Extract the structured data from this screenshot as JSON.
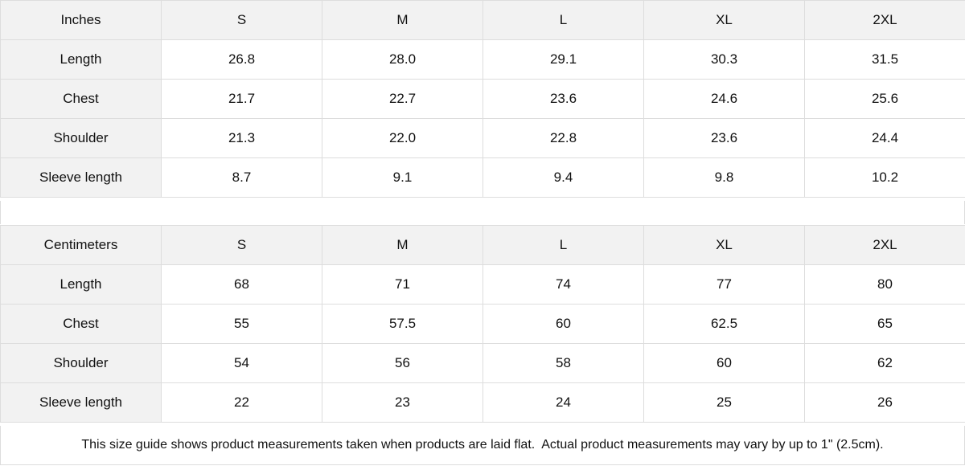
{
  "tables": [
    {
      "unit_label": "Inches",
      "sizes": [
        "S",
        "M",
        "L",
        "XL",
        "2XL"
      ],
      "rows": [
        {
          "label": "Length",
          "values": [
            "26.8",
            "28.0",
            "29.1",
            "30.3",
            "31.5"
          ]
        },
        {
          "label": "Chest",
          "values": [
            "21.7",
            "22.7",
            "23.6",
            "24.6",
            "25.6"
          ]
        },
        {
          "label": "Shoulder",
          "values": [
            "21.3",
            "22.0",
            "22.8",
            "23.6",
            "24.4"
          ]
        },
        {
          "label": "Sleeve length",
          "values": [
            "8.7",
            "9.1",
            "9.4",
            "9.8",
            "10.2"
          ]
        }
      ]
    },
    {
      "unit_label": "Centimeters",
      "sizes": [
        "S",
        "M",
        "L",
        "XL",
        "2XL"
      ],
      "rows": [
        {
          "label": "Length",
          "values": [
            "68",
            "71",
            "74",
            "77",
            "80"
          ]
        },
        {
          "label": "Chest",
          "values": [
            "55",
            "57.5",
            "60",
            "62.5",
            "65"
          ]
        },
        {
          "label": "Shoulder",
          "values": [
            "54",
            "56",
            "58",
            "60",
            "62"
          ]
        },
        {
          "label": "Sleeve length",
          "values": [
            "22",
            "23",
            "24",
            "25",
            "26"
          ]
        }
      ]
    }
  ],
  "note": "This size guide shows product measurements taken when products are laid flat.  Actual product measurements may vary by up to 1\" (2.5cm).",
  "colors": {
    "header_bg": "#f2f2f2",
    "border": "#dddddd",
    "text": "#111111"
  }
}
